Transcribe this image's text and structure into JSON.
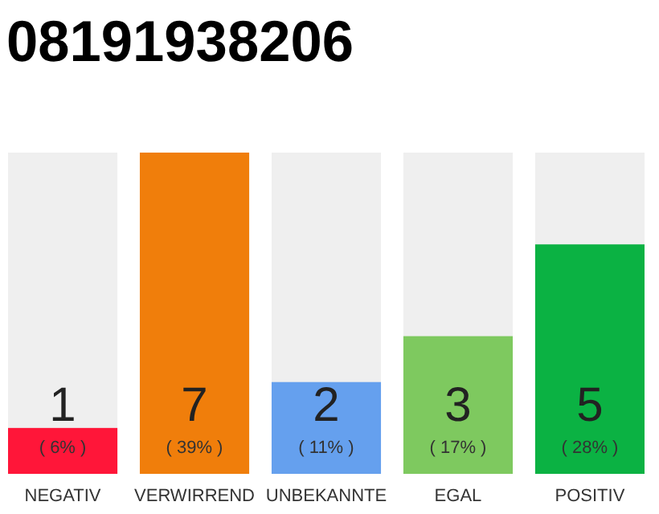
{
  "chart_data": {
    "type": "bar",
    "title": "08191938206",
    "ylim": [
      0,
      7
    ],
    "data_labels": true,
    "categories": [
      "NEGATIV",
      "VERWIRREND",
      "UNBEKANNTE",
      "EGAL",
      "POSITIV"
    ],
    "values": [
      1,
      7,
      2,
      3,
      5
    ],
    "colors": [
      "#ff1639",
      "#f07e0b",
      "#65a0ee",
      "#7ec95f",
      "#0bb243"
    ],
    "annotations": [
      "( 6% )",
      "( 39% )",
      "( 11% )",
      "( 17% )",
      "( 28% )"
    ]
  }
}
